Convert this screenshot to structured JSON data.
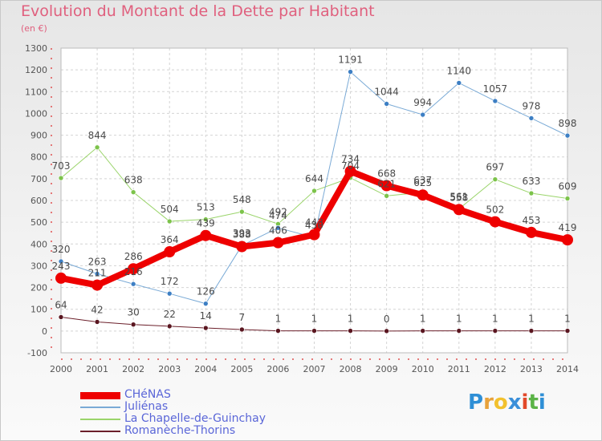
{
  "title": "Evolution du Montant de la Dette par Habitant",
  "unit_label": "(en €)",
  "logo": {
    "text": "Proxiti",
    "letters": [
      "P",
      "r",
      "o",
      "x",
      "i",
      "t",
      "i"
    ],
    "colors": [
      "#2f8fd6",
      "#e8a23a",
      "#f2c12e",
      "#3b8fd9",
      "#e2492b",
      "#5bb347",
      "#2f8fd6"
    ]
  },
  "chart_data": {
    "type": "line",
    "categories": [
      "2000",
      "2001",
      "2002",
      "2003",
      "2004",
      "2005",
      "2006",
      "2007",
      "2008",
      "2009",
      "2010",
      "2011",
      "2012",
      "2013",
      "2014"
    ],
    "ylim": [
      -100,
      1300
    ],
    "yticks": [
      -100,
      0,
      100,
      200,
      300,
      400,
      500,
      600,
      700,
      800,
      900,
      1000,
      1100,
      1200,
      1300
    ],
    "grid": true,
    "legend_position": "bottom-left",
    "series": [
      {
        "name": "Romanèche-Thorins",
        "color": "#6b1f2a",
        "marker": "#5a1620",
        "width": 1,
        "values": [
          64,
          42,
          30,
          22,
          14,
          7,
          1,
          1,
          1,
          0,
          1,
          1,
          1,
          1,
          1
        ],
        "labels": [
          "64",
          "42",
          "30",
          "22",
          "14",
          "7",
          "1",
          "1",
          "1",
          "0",
          "1",
          "1",
          "1",
          "1",
          "1"
        ]
      },
      {
        "name": "La Chapelle-de-Guinchay",
        "color": "#9ad46a",
        "marker": "#7cc34a",
        "width": 1,
        "values": [
          703,
          844,
          638,
          504,
          513,
          548,
          492,
          644,
          704,
          621,
          637,
          561,
          697,
          633,
          609
        ],
        "labels": [
          "703",
          "844",
          "638",
          "504",
          "513",
          "548",
          "492",
          "644",
          "704",
          "621",
          "637",
          "561",
          "697",
          "633",
          "609"
        ]
      },
      {
        "name": "Juliénas",
        "color": "#7aaad6",
        "marker": "#3d7fc4",
        "width": 1,
        "values": [
          320,
          263,
          216,
          172,
          126,
          393,
          474,
          430,
          1191,
          1044,
          994,
          1140,
          1057,
          978,
          898
        ],
        "labels": [
          "320",
          "263",
          "216",
          "172",
          "126",
          "393",
          "474",
          "430",
          "1191",
          "1044",
          "994",
          "1140",
          "1057",
          "978",
          "898"
        ]
      },
      {
        "name": "CHéNAS",
        "color": "#ee0000",
        "marker": "#ee0000",
        "width": 8,
        "values": [
          243,
          211,
          286,
          364,
          439,
          388,
          406,
          443,
          734,
          668,
          625,
          558,
          502,
          453,
          419
        ],
        "labels": [
          "243",
          "211",
          "286",
          "364",
          "439",
          "388",
          "406",
          "443",
          "734",
          "668",
          "625",
          "558",
          "502",
          "453",
          "419"
        ]
      }
    ]
  }
}
